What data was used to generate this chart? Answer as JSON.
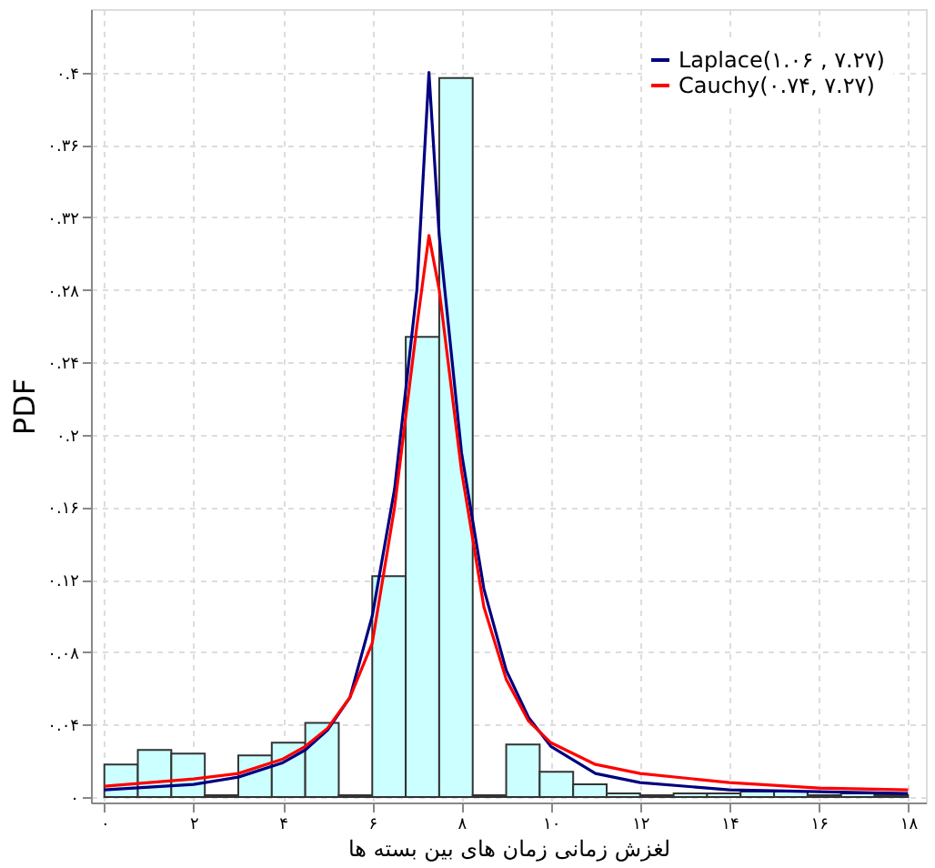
{
  "chart_data": {
    "type": "histogram",
    "xlabel": "لغزش زمانی زمان های بین بسته ها",
    "ylabel": "PDF",
    "bins": [
      0,
      0.75,
      1.5,
      2.25,
      3,
      3.75,
      4.5,
      5.25,
      6,
      6.75,
      7.5,
      8.25,
      9,
      9.75,
      10.5,
      11.25,
      12,
      12.75,
      13.5,
      14.25,
      15,
      15.75,
      16.5,
      17.25,
      18
    ],
    "values": [
      0.018,
      0.026,
      0.024,
      0.001,
      0.023,
      0.03,
      0.041,
      0.001,
      0.122,
      0.254,
      0.397,
      0.001,
      0.029,
      0.014,
      0.007,
      0.002,
      0.001,
      0.002,
      0.002,
      0.003,
      0.003,
      0.001,
      0.002,
      0.001
    ],
    "color": "#ccffff",
    "series": [
      {
        "name": "Laplace(۱.۰۶ , ۷.۲۷)",
        "type": "line",
        "color": "#000080",
        "x": [
          0,
          2,
          3,
          4,
          4.5,
          5,
          5.5,
          6,
          6.5,
          7,
          7.27,
          7.5,
          8,
          8.5,
          9,
          9.5,
          10,
          11,
          12,
          14,
          16,
          18
        ],
        "values": [
          0.004,
          0.007,
          0.011,
          0.019,
          0.026,
          0.037,
          0.055,
          0.1,
          0.17,
          0.28,
          0.4,
          0.31,
          0.19,
          0.115,
          0.07,
          0.044,
          0.028,
          0.013,
          0.008,
          0.004,
          0.003,
          0.002
        ]
      },
      {
        "name": "Cauchy(۰.۷۴, ۷.۲۷)",
        "type": "line",
        "color": "#ff0000",
        "x": [
          0,
          1,
          2,
          3,
          4,
          4.5,
          5,
          5.5,
          6,
          6.5,
          7,
          7.27,
          7.5,
          8,
          8.5,
          9,
          9.5,
          10,
          11,
          12,
          14,
          16,
          18
        ],
        "values": [
          0.006,
          0.008,
          0.01,
          0.013,
          0.021,
          0.028,
          0.038,
          0.055,
          0.085,
          0.16,
          0.26,
          0.31,
          0.28,
          0.18,
          0.105,
          0.065,
          0.042,
          0.03,
          0.018,
          0.013,
          0.008,
          0.005,
          0.004
        ]
      }
    ],
    "xlim": [
      -0.3,
      18.4
    ],
    "ylim": [
      -0.003,
      0.435
    ],
    "xticks": [
      {
        "value": 0,
        "label": "۰"
      },
      {
        "value": 2,
        "label": "۲"
      },
      {
        "value": 4,
        "label": "۴"
      },
      {
        "value": 6,
        "label": "۶"
      },
      {
        "value": 8,
        "label": "۸"
      },
      {
        "value": 10,
        "label": "۱۰"
      },
      {
        "value": 12,
        "label": "۱۲"
      },
      {
        "value": 14,
        "label": "۱۴"
      },
      {
        "value": 16,
        "label": "۱۶"
      },
      {
        "value": 18,
        "label": "۱۸"
      }
    ],
    "yticks": [
      {
        "value": 0,
        "label": "۰"
      },
      {
        "value": 0.04,
        "label": "۰.۰۴"
      },
      {
        "value": 0.08,
        "label": "۰.۰۸"
      },
      {
        "value": 0.12,
        "label": "۰.۱۲"
      },
      {
        "value": 0.16,
        "label": "۰.۱۶"
      },
      {
        "value": 0.2,
        "label": "۰.۲"
      },
      {
        "value": 0.24,
        "label": "۰.۲۴"
      },
      {
        "value": 0.28,
        "label": "۰.۲۸"
      },
      {
        "value": 0.32,
        "label": "۰.۳۲"
      },
      {
        "value": 0.36,
        "label": "۰.۳۶"
      },
      {
        "value": 0.4,
        "label": "۰.۴"
      }
    ],
    "grid": true,
    "legend": "top right",
    "line_style": "solid"
  }
}
